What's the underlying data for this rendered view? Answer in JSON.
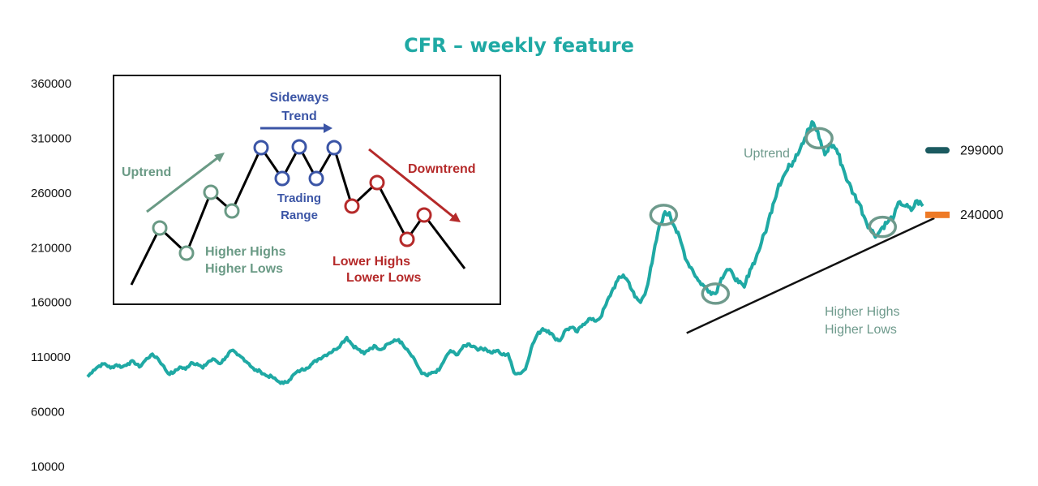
{
  "chart_data": {
    "type": "line",
    "title": "CFR – weekly feature",
    "xlabel": "",
    "ylabel": "",
    "ylim": [
      10000,
      360000
    ],
    "yticks": [
      360000,
      310000,
      260000,
      210000,
      160000,
      110000,
      60000,
      10000
    ],
    "grid": false,
    "legend": "none",
    "colors": {
      "series": "#1fa9a4",
      "trendline": "#111111",
      "circles": "#6e9a8c",
      "marker_dark": "#1b5a60",
      "marker_orange": "#ee7a26"
    },
    "series": [
      {
        "values": [
          92000,
          98000,
          102000,
          104000,
          100000,
          103000,
          101000,
          104000,
          106000,
          101000,
          107000,
          112000,
          110000,
          103000,
          95000,
          96000,
          101000,
          99000,
          105000,
          104000,
          100000,
          106000,
          108000,
          104000,
          110000,
          116000,
          112000,
          109000,
          104000,
          98000,
          97000,
          93000,
          92000,
          88000,
          86000,
          89000,
          95000,
          98000,
          100000,
          104000,
          108000,
          111000,
          114000,
          117000,
          122000,
          128000,
          121000,
          117000,
          113000,
          118000,
          120000,
          117000,
          122000,
          124000,
          126000,
          119000,
          113000,
          105000,
          95000,
          93000,
          96000,
          98000,
          108000,
          116000,
          112000,
          118000,
          122000,
          120000,
          117000,
          118000,
          114000,
          116000,
          112000,
          113000,
          96000,
          95000,
          99000,
          118000,
          130000,
          136000,
          134000,
          128000,
          125000,
          135000,
          137000,
          133000,
          140000,
          145000,
          143000,
          146000,
          158000,
          170000,
          180000,
          185000,
          178000,
          165000,
          160000,
          172000,
          196000,
          224000,
          240000,
          242000,
          228000,
          215000,
          198000,
          190000,
          180000,
          175000,
          170000,
          168000,
          182000,
          190000,
          186000,
          178000,
          174000,
          190000,
          200000,
          215000,
          230000,
          250000,
          268000,
          277000,
          285000,
          295000,
          305000,
          318000,
          324000,
          310000,
          295000,
          305000,
          300000,
          285000,
          270000,
          259000,
          250000,
          236000,
          226000,
          221000,
          229000,
          234000,
          239000,
          252000,
          248000,
          244000,
          253000,
          248000
        ]
      }
    ],
    "annotations": {
      "uptrend": "Uptrend",
      "higher_highs": "Higher Highs",
      "higher_lows": "Higher Lows"
    },
    "callouts": [
      {
        "label": "299000",
        "value": 299000,
        "color": "#1b5a60"
      },
      {
        "label": "240000",
        "value": 240000,
        "color": "#ee7a26"
      }
    ],
    "trendline": {
      "start_index": 104,
      "start_value": 132000,
      "end_index": 147,
      "end_value": 237000
    },
    "highlight_indices": [
      100,
      109,
      127,
      138
    ],
    "inset": {
      "labels": {
        "uptrend": "Uptrend",
        "sideways_1": "Sideways",
        "sideways_2": "Trend",
        "trading_1": "Trading",
        "trading_2": "Range",
        "hh_1": "Higher Highs",
        "hh_2": "Higher Lows",
        "downtrend": "Downtrend",
        "lh_1": "Lower Highs",
        "lh_2": "Lower Lows"
      },
      "colors": {
        "green": "#6a9a85",
        "blue": "#3b55a6",
        "red": "#b52a2a",
        "black": "#000000"
      }
    }
  }
}
